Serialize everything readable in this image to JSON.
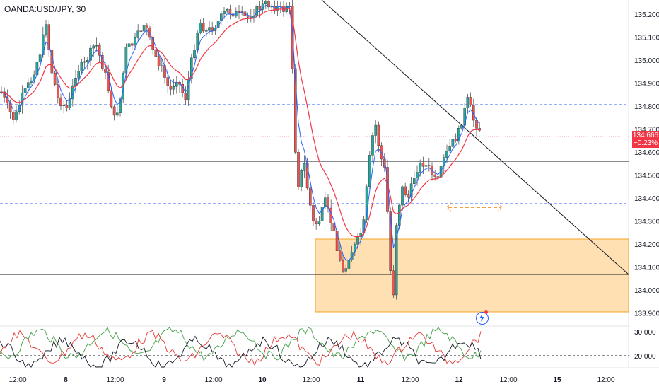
{
  "symbol": {
    "title": "OANDA:USD/JPY, 30"
  },
  "price_axis": {
    "ticks": [
      "135.200",
      "135.100",
      "135.000",
      "134.900",
      "134.800",
      "134.700",
      "134.600",
      "134.500",
      "134.400",
      "134.300",
      "134.200",
      "134.100",
      "134.000",
      "133.900"
    ]
  },
  "current_price": {
    "value": "134.666",
    "change": "−0.23%",
    "color": "#f23645"
  },
  "oscillator_axis": {
    "ticks": [
      "30.000",
      "20.000"
    ]
  },
  "time_axis": {
    "labels": [
      "12:00",
      "8",
      "12:00",
      "9",
      "12:00",
      "10",
      "12:00",
      "11",
      "12:00",
      "12",
      "12:00",
      "15",
      "12:00"
    ]
  },
  "colors": {
    "up": "#26a69a",
    "down": "#ef5350",
    "ema_fast": "#2962ff",
    "ema_slow": "#f23645",
    "zone_fill": "#ffe0b2",
    "zone_border": "#f5a623",
    "dashed_level": "#2962ff"
  },
  "icons": {
    "alert": "alert-lightning-icon"
  }
}
